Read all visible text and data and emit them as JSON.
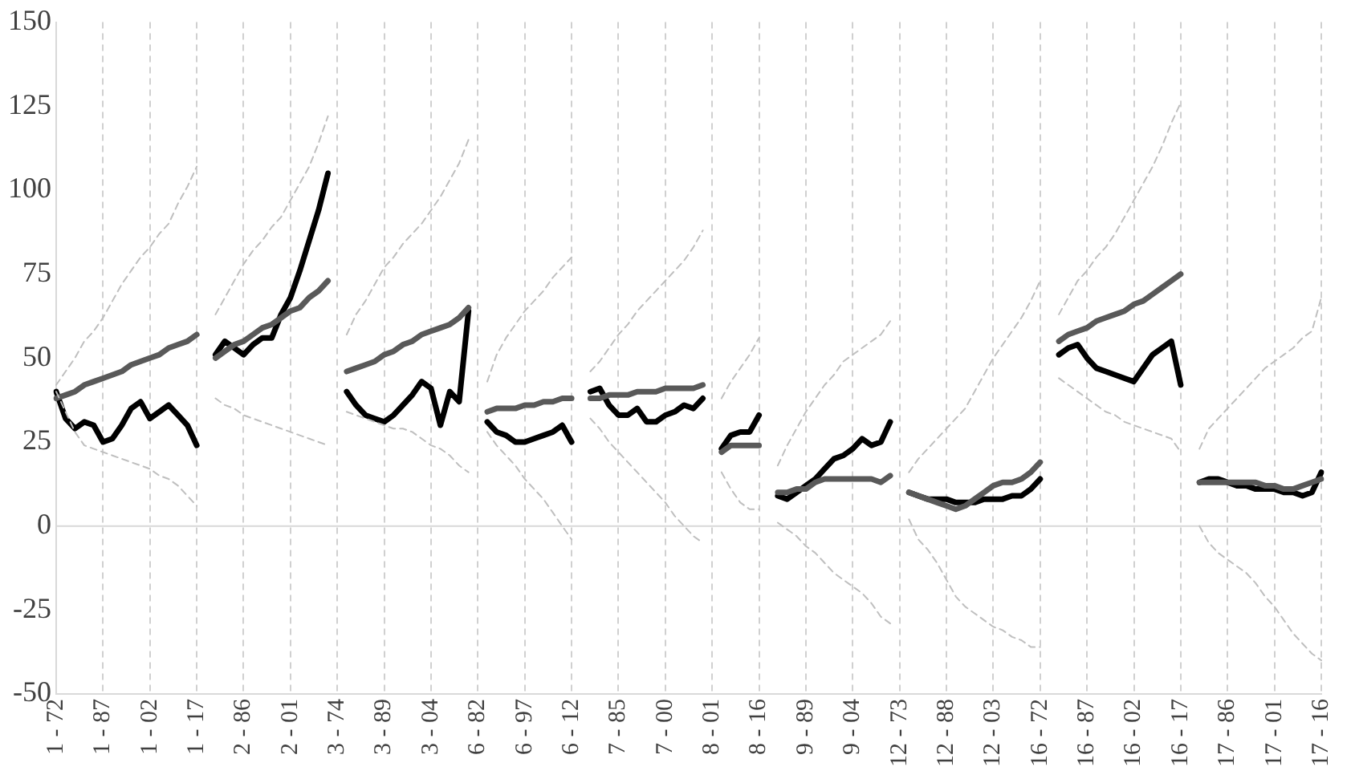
{
  "chart_data": {
    "type": "line",
    "ylim": [
      -50,
      150
    ],
    "yticks": [
      -50,
      -25,
      0,
      25,
      50,
      75,
      100,
      125,
      150
    ],
    "categories": [
      "1 - 72",
      null,
      null,
      null,
      null,
      "1 - 87",
      null,
      null,
      null,
      null,
      "1 - 02",
      null,
      null,
      null,
      null,
      "1 - 17",
      null,
      null,
      null,
      null,
      "2 - 86",
      null,
      null,
      null,
      null,
      "2 - 01",
      null,
      null,
      null,
      null,
      "3 - 74",
      null,
      null,
      null,
      null,
      "3 - 89",
      null,
      null,
      null,
      null,
      "3 - 04",
      null,
      null,
      null,
      null,
      "6 - 82",
      null,
      null,
      null,
      null,
      "6 - 97",
      null,
      null,
      null,
      null,
      "6 - 12",
      null,
      null,
      null,
      null,
      "7 - 85",
      null,
      null,
      null,
      null,
      "7 - 00",
      null,
      null,
      null,
      null,
      "8 - 01",
      null,
      null,
      null,
      null,
      "8 - 16",
      null,
      null,
      null,
      null,
      "9 - 89",
      null,
      null,
      null,
      null,
      "9 - 04",
      null,
      null,
      null,
      null,
      "12 - 73",
      null,
      null,
      null,
      null,
      "12 - 88",
      null,
      null,
      null,
      null,
      "12 - 03",
      null,
      null,
      null,
      null,
      "16 - 72",
      null,
      null,
      null,
      null,
      "16 - 87",
      null,
      null,
      null,
      null,
      "16 - 02",
      null,
      null,
      null,
      null,
      "16 - 17",
      null,
      null,
      null,
      null,
      "17 - 86",
      null,
      null,
      null,
      null,
      "17 - 01",
      null,
      null,
      null,
      null,
      "17 - 16"
    ],
    "grid": "x",
    "marker": "none",
    "ref_lines": [
      {
        "axis": "y",
        "value": 0,
        "color": "#d9d9d9",
        "line_style": "solid"
      }
    ],
    "series": [
      {
        "color": "#bfbfbf",
        "line_style": "dashed",
        "values": [
          42,
          46,
          50,
          55,
          58,
          62,
          67,
          72,
          76,
          80,
          83,
          87,
          90,
          96,
          101,
          107,
          null,
          63,
          68,
          73,
          78,
          82,
          85,
          89,
          92,
          97,
          102,
          107,
          114,
          122,
          null,
          57,
          63,
          67,
          72,
          77,
          80,
          84,
          87,
          90,
          94,
          98,
          103,
          108,
          115,
          null,
          43,
          51,
          56,
          60,
          64,
          67,
          70,
          74,
          77,
          80,
          null,
          46,
          49,
          53,
          57,
          60,
          64,
          67,
          70,
          73,
          76,
          79,
          83,
          88,
          null,
          38,
          43,
          47,
          51,
          56,
          null,
          18,
          24,
          29,
          34,
          38,
          42,
          45,
          49,
          51,
          53,
          55,
          57,
          61,
          null,
          16,
          20,
          23,
          26,
          29,
          32,
          35,
          40,
          45,
          50,
          54,
          58,
          62,
          67,
          73,
          null,
          63,
          68,
          73,
          76,
          80,
          83,
          87,
          92,
          97,
          102,
          107,
          113,
          120,
          126,
          null,
          23,
          29,
          32,
          35,
          38,
          41,
          44,
          47,
          49,
          51,
          53,
          56,
          58,
          68
        ]
      },
      {
        "color": "#bfbfbf",
        "line_style": "dashed",
        "values": [
          40,
          34,
          28,
          24,
          23,
          22,
          21,
          20,
          19,
          18,
          17,
          15,
          14,
          12,
          9,
          6,
          null,
          38,
          36,
          35,
          33,
          32,
          31,
          30,
          29,
          28,
          27,
          26,
          25,
          24,
          null,
          34,
          33,
          32,
          31,
          30,
          29,
          29,
          28,
          26,
          24,
          23,
          21,
          18,
          16,
          null,
          28,
          24,
          21,
          18,
          14,
          11,
          8,
          4,
          0,
          -4,
          null,
          32,
          29,
          25,
          22,
          19,
          16,
          13,
          10,
          7,
          3,
          0,
          -3,
          -5,
          null,
          16,
          11,
          7,
          5,
          5,
          null,
          1,
          -1,
          -3,
          -6,
          -8,
          -11,
          -14,
          -16,
          -18,
          -20,
          -23,
          -27,
          -29,
          null,
          2,
          -4,
          -7,
          -11,
          -16,
          -21,
          -24,
          -26,
          -28,
          -30,
          -31,
          -33,
          -34,
          -36,
          -36,
          null,
          44,
          42,
          40,
          38,
          36,
          34,
          33,
          31,
          30,
          29,
          28,
          27,
          26,
          22,
          null,
          0,
          -5,
          -8,
          -10,
          -12,
          -14,
          -17,
          -21,
          -24,
          -28,
          -32,
          -35,
          -38,
          -40
        ]
      },
      {
        "color": "#595959",
        "line_style": "solid",
        "values": [
          38,
          39,
          40,
          42,
          43,
          44,
          45,
          46,
          48,
          49,
          50,
          51,
          53,
          54,
          55,
          57,
          null,
          50,
          52,
          54,
          55,
          57,
          59,
          60,
          62,
          64,
          65,
          68,
          70,
          73,
          null,
          46,
          47,
          48,
          49,
          51,
          52,
          54,
          55,
          57,
          58,
          59,
          60,
          62,
          65,
          null,
          34,
          35,
          35,
          35,
          36,
          36,
          37,
          37,
          38,
          38,
          null,
          38,
          38,
          39,
          39,
          39,
          40,
          40,
          40,
          41,
          41,
          41,
          41,
          42,
          null,
          22,
          24,
          24,
          24,
          24,
          null,
          10,
          10,
          11,
          11,
          13,
          14,
          14,
          14,
          14,
          14,
          14,
          13,
          15,
          null,
          10,
          9,
          8,
          7,
          6,
          5,
          6,
          8,
          10,
          12,
          13,
          13,
          14,
          16,
          19,
          null,
          55,
          57,
          58,
          59,
          61,
          62,
          63,
          64,
          66,
          67,
          69,
          71,
          73,
          75,
          null,
          13,
          13,
          13,
          13,
          13,
          13,
          13,
          12,
          12,
          11,
          11,
          12,
          13,
          14
        ]
      },
      {
        "color": "#000000",
        "line_style": "solid",
        "values": [
          40,
          32,
          29,
          31,
          30,
          25,
          26,
          30,
          35,
          37,
          32,
          34,
          36,
          33,
          30,
          24,
          null,
          51,
          55,
          53,
          51,
          54,
          56,
          56,
          63,
          68,
          76,
          85,
          94,
          105,
          null,
          40,
          36,
          33,
          32,
          31,
          33,
          36,
          39,
          43,
          41,
          30,
          40,
          37,
          64,
          null,
          31,
          28,
          27,
          25,
          25,
          26,
          27,
          28,
          30,
          25,
          null,
          40,
          41,
          36,
          33,
          33,
          35,
          31,
          31,
          33,
          34,
          36,
          35,
          38,
          null,
          23,
          27,
          28,
          28,
          33,
          null,
          9,
          8,
          10,
          12,
          14,
          17,
          20,
          21,
          23,
          26,
          24,
          25,
          31,
          null,
          10,
          9,
          8,
          8,
          8,
          7,
          7,
          7,
          8,
          8,
          8,
          9,
          9,
          11,
          14,
          null,
          51,
          53,
          54,
          50,
          47,
          46,
          45,
          44,
          43,
          47,
          51,
          53,
          55,
          42,
          null,
          13,
          14,
          14,
          13,
          12,
          12,
          11,
          11,
          11,
          10,
          10,
          9,
          10,
          16
        ]
      }
    ]
  }
}
